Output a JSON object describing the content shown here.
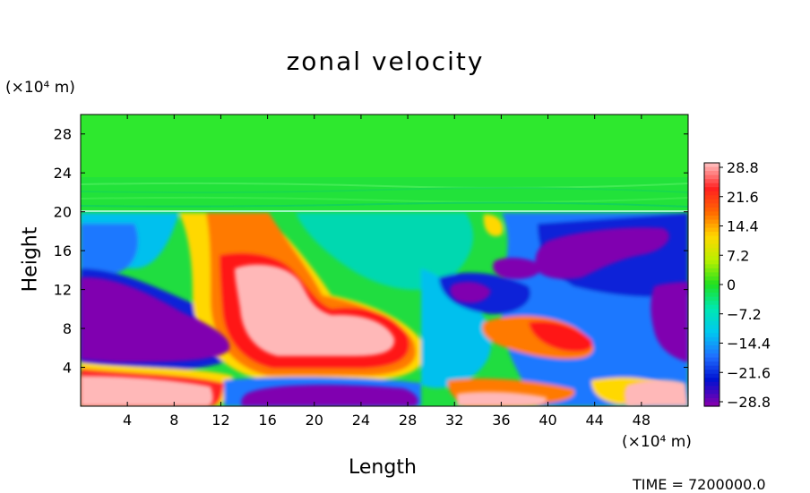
{
  "chart_data": {
    "type": "heatmap",
    "title": "zonal velocity",
    "xlabel": "Length",
    "ylabel": "Height",
    "x_unit": "(×10⁴ m)",
    "y_unit": "(×10⁴ m)",
    "xlim": [
      0,
      52
    ],
    "ylim": [
      0,
      30
    ],
    "x_ticks": [
      4,
      8,
      12,
      16,
      20,
      24,
      28,
      32,
      36,
      40,
      44,
      48
    ],
    "y_ticks": [
      4,
      8,
      12,
      16,
      20,
      24,
      28
    ],
    "colorbar": {
      "ticks": [
        "28.8",
        "21.6",
        "14.4",
        "7.2",
        "0",
        "−7.2",
        "−14.4",
        "−21.6",
        "−28.8"
      ],
      "colors": [
        "#ffb8b8",
        "#ff2020",
        "#ff6a00",
        "#ffd800",
        "#b8f000",
        "#20e020",
        "#00e8b0",
        "#00c8f0",
        "#2070ff",
        "#0010d0",
        "#8000b0"
      ]
    },
    "regions": [
      {
        "name": "upper-layer",
        "value": 0,
        "x": [
          0,
          52
        ],
        "y": [
          20,
          30
        ]
      },
      {
        "name": "lower-left-negative",
        "value": -28.8,
        "x": [
          0,
          12
        ],
        "y": [
          4,
          13
        ]
      },
      {
        "name": "central-positive",
        "value": 28.8,
        "x": [
          13,
          27
        ],
        "y": [
          5,
          15
        ]
      },
      {
        "name": "upper-right-negative",
        "value": -28.8,
        "x": [
          35,
          52
        ],
        "y": [
          13,
          19
        ]
      },
      {
        "name": "bottom-left-positive",
        "value": 28.8,
        "x": [
          0,
          11
        ],
        "y": [
          0,
          3
        ]
      },
      {
        "name": "bottom-center-negative",
        "value": -28.8,
        "x": [
          14,
          28
        ],
        "y": [
          0,
          2.5
        ]
      }
    ]
  },
  "time_label": "TIME = 7200000.0"
}
